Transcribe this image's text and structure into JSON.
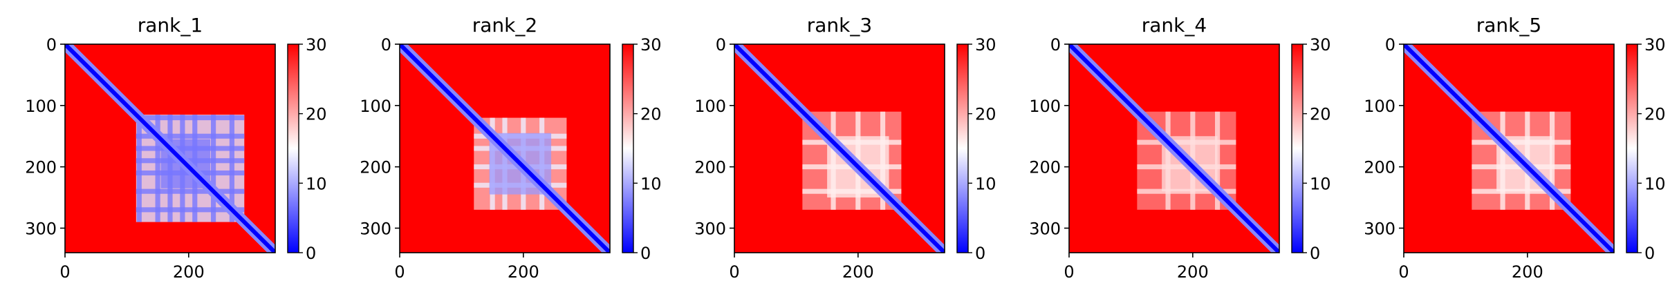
{
  "chart_data": [
    {
      "type": "heatmap",
      "title": "rank_1",
      "matrix_size": 340,
      "xlim": [
        0,
        340
      ],
      "ylim": [
        340,
        0
      ],
      "xticks": [
        "0",
        "200"
      ],
      "yticks": [
        "0",
        "100",
        "200",
        "300"
      ],
      "colorbar": {
        "min": 0,
        "max": 30,
        "ticks": [
          "0",
          "10",
          "20",
          "30"
        ],
        "colormap": "bwr"
      },
      "background_value": 30,
      "diagonal_value": 0,
      "low_distance_block": {
        "start": 115,
        "end": 290,
        "value": 13,
        "stripe_centers": [
          120,
          150,
          170,
          190,
          210,
          240,
          270
        ]
      },
      "core_block": {
        "start": 155,
        "end": 235,
        "value": 7
      }
    },
    {
      "type": "heatmap",
      "title": "rank_2",
      "matrix_size": 340,
      "xlim": [
        0,
        340
      ],
      "ylim": [
        340,
        0
      ],
      "xticks": [
        "0",
        "200"
      ],
      "yticks": [
        "0",
        "100",
        "200",
        "300"
      ],
      "colorbar": {
        "min": 0,
        "max": 30,
        "ticks": [
          "0",
          "10",
          "20",
          "30"
        ],
        "colormap": "bwr"
      },
      "background_value": 30,
      "diagonal_value": 0,
      "low_distance_block": {
        "start": 120,
        "end": 270,
        "value": 20,
        "stripe_centers": [
          150,
          170,
          200,
          230
        ]
      },
      "core_block": {
        "start": 145,
        "end": 245,
        "value": 9
      }
    },
    {
      "type": "heatmap",
      "title": "rank_3",
      "matrix_size": 340,
      "xlim": [
        0,
        340
      ],
      "ylim": [
        340,
        0
      ],
      "xticks": [
        "0",
        "200"
      ],
      "yticks": [
        "0",
        "100",
        "200",
        "300"
      ],
      "colorbar": {
        "min": 0,
        "max": 30,
        "ticks": [
          "0",
          "10",
          "20",
          "30"
        ],
        "colormap": "bwr"
      },
      "background_value": 30,
      "diagonal_value": 0,
      "low_distance_block": {
        "start": 110,
        "end": 270,
        "value": 22,
        "stripe_centers": [
          160,
          200,
          240
        ]
      },
      "core_block": {
        "start": 150,
        "end": 250,
        "value": 16
      }
    },
    {
      "type": "heatmap",
      "title": "rank_4",
      "matrix_size": 340,
      "xlim": [
        0,
        340
      ],
      "ylim": [
        340,
        0
      ],
      "xticks": [
        "0",
        "200"
      ],
      "yticks": [
        "0",
        "100",
        "200",
        "300"
      ],
      "colorbar": {
        "min": 0,
        "max": 30,
        "ticks": [
          "0",
          "10",
          "20",
          "30"
        ],
        "colormap": "bwr"
      },
      "background_value": 30,
      "diagonal_value": 0,
      "low_distance_block": {
        "start": 110,
        "end": 270,
        "value": 23,
        "stripe_centers": [
          160,
          200,
          240
        ]
      },
      "core_block": {
        "start": 150,
        "end": 240,
        "value": 17
      }
    },
    {
      "type": "heatmap",
      "title": "rank_5",
      "matrix_size": 340,
      "xlim": [
        0,
        340
      ],
      "ylim": [
        340,
        0
      ],
      "xticks": [
        "0",
        "200"
      ],
      "yticks": [
        "0",
        "100",
        "200",
        "300"
      ],
      "colorbar": {
        "min": 0,
        "max": 30,
        "ticks": [
          "0",
          "10",
          "20",
          "30"
        ],
        "colormap": "bwr"
      },
      "background_value": 30,
      "diagonal_value": 0,
      "low_distance_block": {
        "start": 110,
        "end": 270,
        "value": 22,
        "stripe_centers": [
          160,
          200,
          240
        ]
      },
      "core_block": {
        "start": 150,
        "end": 240,
        "value": 16
      }
    }
  ]
}
